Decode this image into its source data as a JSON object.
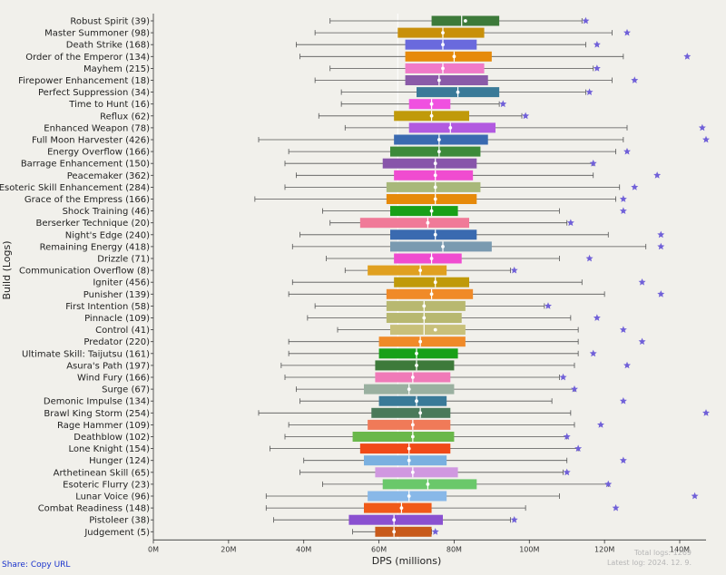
{
  "share": {
    "prefix": "Share:",
    "link": "Copy URL"
  },
  "footer": {
    "total_logs": "Total logs: 1269",
    "latest_log": "Latest log: 2024. 12. 9."
  },
  "chart_data": {
    "type": "box",
    "orientation": "horizontal",
    "xlabel": "DPS (millions)",
    "ylabel": "Build (Logs)",
    "xlim": [
      0,
      147
    ],
    "xticks": [
      0,
      20,
      40,
      60,
      80,
      100,
      120,
      140
    ],
    "xtick_labels": [
      "0M",
      "20M",
      "40M",
      "60M",
      "80M",
      "100M",
      "120M",
      "140M"
    ],
    "reference_line": 65,
    "grid": false,
    "markers": {
      "mean": "white dot",
      "max": "star"
    },
    "series": [
      {
        "name": "Robust Spirit (39)",
        "color": "#3d7a3a",
        "whisker_low": 47,
        "q1": 74,
        "median": 82,
        "q3": 92,
        "whisker_high": 114,
        "mean": 83,
        "star": 115
      },
      {
        "name": "Master Summoner (98)",
        "color": "#c8900a",
        "whisker_low": 43,
        "q1": 65,
        "median": 77,
        "q3": 88,
        "whisker_high": 122,
        "mean": 77,
        "star": 126
      },
      {
        "name": "Death Strike (168)",
        "color": "#6a6add",
        "whisker_low": 38,
        "q1": 67,
        "median": 77,
        "q3": 86,
        "whisker_high": 115,
        "mean": 77,
        "star": 118
      },
      {
        "name": "Order of the Emperor (134)",
        "color": "#e68a0a",
        "whisker_low": 39,
        "q1": 67,
        "median": 80,
        "q3": 90,
        "whisker_high": 125,
        "mean": 80,
        "star": 142
      },
      {
        "name": "Mayhem (215)",
        "color": "#f07ac8",
        "whisker_low": 47,
        "q1": 67,
        "median": 77,
        "q3": 88,
        "whisker_high": 117,
        "mean": 77,
        "star": 118
      },
      {
        "name": "Firepower Enhancement (18)",
        "color": "#8a5aa8",
        "whisker_low": 43,
        "q1": 67,
        "median": 76,
        "q3": 89,
        "whisker_high": 122,
        "mean": 76,
        "star": 128
      },
      {
        "name": "Perfect Suppression (34)",
        "color": "#3a7a98",
        "whisker_low": 50,
        "q1": 70,
        "median": 81,
        "q3": 92,
        "whisker_high": 115,
        "mean": 81,
        "star": 116
      },
      {
        "name": "Time to Hunt (16)",
        "color": "#f050e0",
        "whisker_low": 50,
        "q1": 68,
        "median": 74,
        "q3": 79,
        "whisker_high": 92,
        "mean": 74,
        "star": 93
      },
      {
        "name": "Reflux (62)",
        "color": "#c09a0a",
        "whisker_low": 44,
        "q1": 64,
        "median": 74,
        "q3": 84,
        "whisker_high": 98,
        "mean": 74,
        "star": 99
      },
      {
        "name": "Enhanced Weapon (78)",
        "color": "#b25ae0",
        "whisker_low": 51,
        "q1": 68,
        "median": 79,
        "q3": 91,
        "whisker_high": 126,
        "mean": 79,
        "star": 146
      },
      {
        "name": "Full Moon Harvester (426)",
        "color": "#3a6ab0",
        "whisker_low": 28,
        "q1": 64,
        "median": 76,
        "q3": 89,
        "whisker_high": 125,
        "mean": 76,
        "star": 147
      },
      {
        "name": "Energy Overflow (166)",
        "color": "#3d8a3a",
        "whisker_low": 36,
        "q1": 63,
        "median": 76,
        "q3": 87,
        "whisker_high": 123,
        "mean": 76,
        "star": 126
      },
      {
        "name": "Barrage Enhancement (150)",
        "color": "#8855aa",
        "whisker_low": 35,
        "q1": 61,
        "median": 75,
        "q3": 86,
        "whisker_high": 117,
        "mean": 75,
        "star": 117
      },
      {
        "name": "Peacemaker (362)",
        "color": "#f04cd0",
        "whisker_low": 38,
        "q1": 64,
        "median": 75,
        "q3": 85,
        "whisker_high": 117,
        "mean": 75,
        "star": 134
      },
      {
        "name": "Esoteric Skill Enhancement (284)",
        "color": "#a8b87a",
        "whisker_low": 35,
        "q1": 62,
        "median": 75,
        "q3": 87,
        "whisker_high": 124,
        "mean": 75,
        "star": 128
      },
      {
        "name": "Grace of the Empress (166)",
        "color": "#e68a0a",
        "whisker_low": 27,
        "q1": 62,
        "median": 75,
        "q3": 86,
        "whisker_high": 123,
        "mean": 75,
        "star": 125
      },
      {
        "name": "Shock Training (46)",
        "color": "#18a018",
        "whisker_low": 45,
        "q1": 63,
        "median": 74,
        "q3": 81,
        "whisker_high": 108,
        "mean": 74,
        "star": 125
      },
      {
        "name": "Berserker Technique (20)",
        "color": "#f07a98",
        "whisker_low": 47,
        "q1": 55,
        "median": 73,
        "q3": 84,
        "whisker_high": 110,
        "mean": 73,
        "star": 111
      },
      {
        "name": "Night's Edge (240)",
        "color": "#3a6ab0",
        "whisker_low": 39,
        "q1": 63,
        "median": 75,
        "q3": 86,
        "whisker_high": 121,
        "mean": 75,
        "star": 135
      },
      {
        "name": "Remaining Energy (418)",
        "color": "#7a9ab0",
        "whisker_low": 37,
        "q1": 63,
        "median": 77,
        "q3": 90,
        "whisker_high": 131,
        "mean": 77,
        "star": 135
      },
      {
        "name": "Drizzle (71)",
        "color": "#f04cd0",
        "whisker_low": 46,
        "q1": 64,
        "median": 74,
        "q3": 82,
        "whisker_high": 108,
        "mean": 74,
        "star": 116
      },
      {
        "name": "Communication Overflow (8)",
        "color": "#e0a020",
        "whisker_low": 51,
        "q1": 57,
        "median": 71,
        "q3": 78,
        "whisker_high": 95,
        "mean": 71,
        "star": 96
      },
      {
        "name": "Igniter (456)",
        "color": "#c09a0a",
        "whisker_low": 37,
        "q1": 64,
        "median": 75,
        "q3": 84,
        "whisker_high": 114,
        "mean": 75,
        "star": 130
      },
      {
        "name": "Punisher (139)",
        "color": "#f08a28",
        "whisker_low": 36,
        "q1": 62,
        "median": 74,
        "q3": 85,
        "whisker_high": 120,
        "mean": 74,
        "star": 135
      },
      {
        "name": "First Intention (58)",
        "color": "#b8b870",
        "whisker_low": 43,
        "q1": 62,
        "median": 72,
        "q3": 83,
        "whisker_high": 104,
        "mean": 72,
        "star": 105
      },
      {
        "name": "Pinnacle (109)",
        "color": "#b8b870",
        "whisker_low": 41,
        "q1": 62,
        "median": 72,
        "q3": 82,
        "whisker_high": 111,
        "mean": 72,
        "star": 118
      },
      {
        "name": "Control (41)",
        "color": "#c8c07a",
        "whisker_low": 49,
        "q1": 63,
        "median": 72,
        "q3": 83,
        "whisker_high": 113,
        "mean": 75,
        "star": 125
      },
      {
        "name": "Predator (220)",
        "color": "#f08a28",
        "whisker_low": 36,
        "q1": 60,
        "median": 71,
        "q3": 83,
        "whisker_high": 113,
        "mean": 71,
        "star": 130
      },
      {
        "name": "Ultimate Skill: Taijutsu (161)",
        "color": "#18a018",
        "whisker_low": 36,
        "q1": 60,
        "median": 70,
        "q3": 81,
        "whisker_high": 113,
        "mean": 70,
        "star": 117
      },
      {
        "name": "Asura's Path (197)",
        "color": "#3d7a3a",
        "whisker_low": 34,
        "q1": 59,
        "median": 70,
        "q3": 80,
        "whisker_high": 112,
        "mean": 70,
        "star": 126
      },
      {
        "name": "Wind Fury (166)",
        "color": "#f07ab8",
        "whisker_low": 35,
        "q1": 59,
        "median": 69,
        "q3": 79,
        "whisker_high": 108,
        "mean": 69,
        "star": 109
      },
      {
        "name": "Surge (67)",
        "color": "#9ab0a0",
        "whisker_low": 38,
        "q1": 56,
        "median": 68,
        "q3": 80,
        "whisker_high": 112,
        "mean": 68,
        "star": 112
      },
      {
        "name": "Demonic Impulse (134)",
        "color": "#3a7a98",
        "whisker_low": 39,
        "q1": 60,
        "median": 70,
        "q3": 78,
        "whisker_high": 106,
        "mean": 70,
        "star": 125
      },
      {
        "name": "Brawl King Storm (254)",
        "color": "#4a7a5a",
        "whisker_low": 28,
        "q1": 58,
        "median": 71,
        "q3": 79,
        "whisker_high": 111,
        "mean": 71,
        "star": 147
      },
      {
        "name": "Rage Hammer (109)",
        "color": "#f07a58",
        "whisker_low": 36,
        "q1": 57,
        "median": 69,
        "q3": 79,
        "whisker_high": 112,
        "mean": 69,
        "star": 119
      },
      {
        "name": "Deathblow (102)",
        "color": "#6ab84a",
        "whisker_low": 35,
        "q1": 53,
        "median": 69,
        "q3": 80,
        "whisker_high": 110,
        "mean": 69,
        "star": 110
      },
      {
        "name": "Lone Knight (154)",
        "color": "#f04a18",
        "whisker_low": 31,
        "q1": 55,
        "median": 68,
        "q3": 79,
        "whisker_high": 113,
        "mean": 68,
        "star": 113
      },
      {
        "name": "Hunger (124)",
        "color": "#7ab0e0",
        "whisker_low": 40,
        "q1": 56,
        "median": 68,
        "q3": 78,
        "whisker_high": 110,
        "mean": 68,
        "star": 125
      },
      {
        "name": "Arthetinean Skill (65)",
        "color": "#d098e0",
        "whisker_low": 39,
        "q1": 59,
        "median": 69,
        "q3": 81,
        "whisker_high": 109,
        "mean": 69,
        "star": 110
      },
      {
        "name": "Esoteric Flurry (23)",
        "color": "#6ac86a",
        "whisker_low": 45,
        "q1": 61,
        "median": 73,
        "q3": 86,
        "whisker_high": 121,
        "mean": 73,
        "star": 121
      },
      {
        "name": "Lunar Voice (96)",
        "color": "#88b8e8",
        "whisker_low": 30,
        "q1": 57,
        "median": 68,
        "q3": 78,
        "whisker_high": 108,
        "mean": 68,
        "star": 144
      },
      {
        "name": "Combat Readiness (148)",
        "color": "#f05a18",
        "whisker_low": 30,
        "q1": 56,
        "median": 66,
        "q3": 74,
        "whisker_high": 99,
        "mean": 66,
        "star": 123
      },
      {
        "name": "Pistoleer (38)",
        "color": "#8a50d0",
        "whisker_low": 32,
        "q1": 52,
        "median": 64,
        "q3": 77,
        "whisker_high": 95,
        "mean": 64,
        "star": 96
      },
      {
        "name": "Judgement (5)",
        "color": "#c85a1a",
        "whisker_low": 53,
        "q1": 59,
        "median": 64,
        "q3": 74,
        "whisker_high": 74,
        "mean": 64,
        "star": 75
      }
    ]
  }
}
